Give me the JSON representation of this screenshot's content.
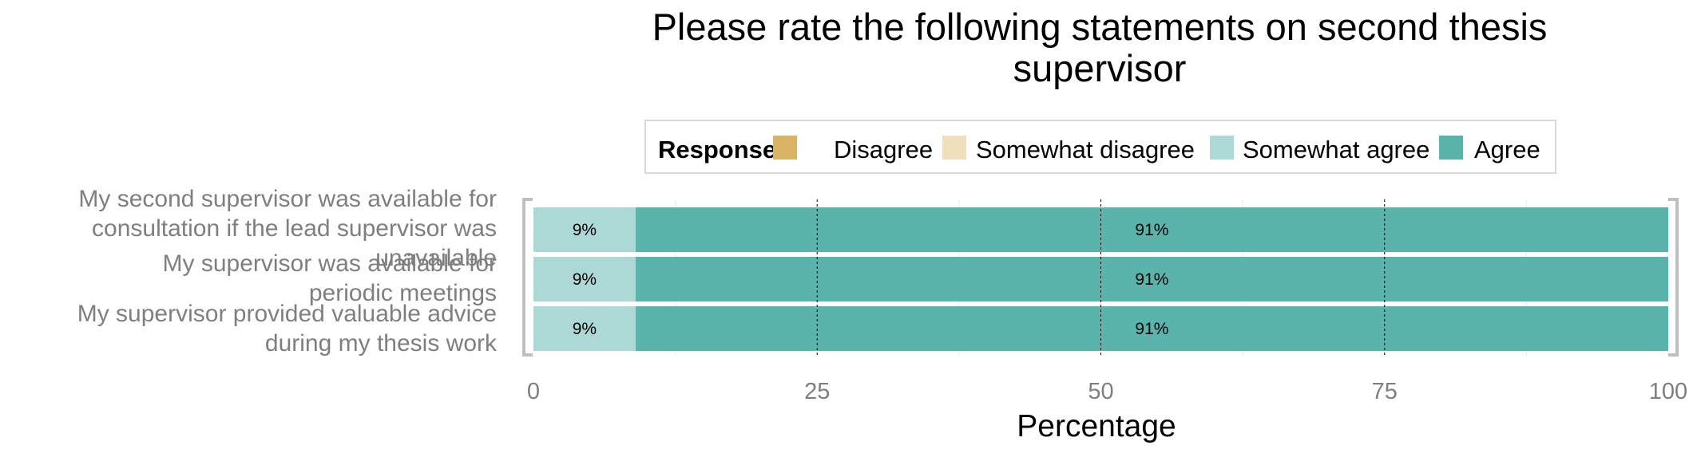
{
  "chart_data": {
    "type": "bar",
    "orientation": "horizontal",
    "stacked": true,
    "title": "Please rate the following statements on second thesis supervisor",
    "xlabel": "Percentage",
    "ylabel": "",
    "xlim": [
      0,
      100
    ],
    "x_ticks": [
      0,
      25,
      50,
      75,
      100
    ],
    "legend": {
      "title": "Response",
      "position": "top",
      "entries": [
        "Disagree",
        "Somewhat disagree",
        "Somewhat agree",
        "Agree"
      ]
    },
    "colors": {
      "Disagree": "#d8b365",
      "Somewhat disagree": "#f1e0bd",
      "Somewhat agree": "#acd9d5",
      "Agree": "#5ab4ac"
    },
    "categories": [
      "My second supervisor was available for consultation if the lead supervisor was unavailable",
      "My supervisor was available for periodic meetings",
      "My supervisor provided valuable advice during my thesis work"
    ],
    "category_lines": [
      [
        "My second supervisor was available for",
        "consultation if the lead supervisor was",
        "unavailable"
      ],
      [
        "My supervisor was available for",
        "periodic meetings"
      ],
      [
        "My supervisor provided valuable advice",
        "during my thesis work"
      ]
    ],
    "series": [
      {
        "name": "Disagree",
        "values": [
          0,
          0,
          0
        ]
      },
      {
        "name": "Somewhat disagree",
        "values": [
          0,
          0,
          0
        ]
      },
      {
        "name": "Somewhat agree",
        "values": [
          9,
          9,
          9
        ],
        "labels": [
          "9%",
          "9%",
          "9%"
        ]
      },
      {
        "name": "Agree",
        "values": [
          91,
          91,
          91
        ],
        "labels": [
          "91%",
          "91%",
          "91%"
        ]
      }
    ],
    "grid": true
  }
}
